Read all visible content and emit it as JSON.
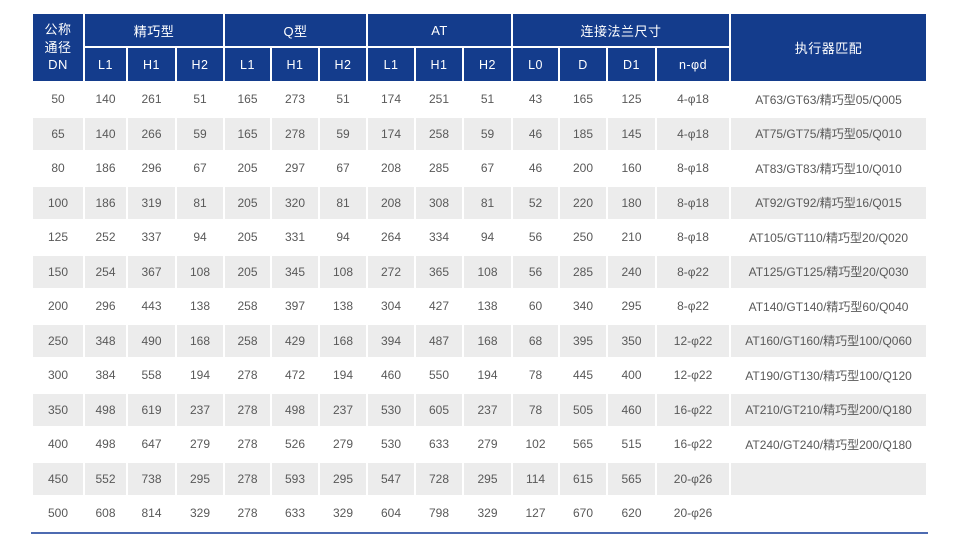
{
  "colors": {
    "header_bg": "#143c8c",
    "header_text": "#ffffff",
    "stripe": "#ececec",
    "body_text": "#595959",
    "bottom_line": "#4d6bb1"
  },
  "table": {
    "dn_header": "公称\n通径\nDN",
    "groups": [
      {
        "label": "精巧型",
        "cols": [
          "L1",
          "H1",
          "H2"
        ]
      },
      {
        "label": "Q型",
        "cols": [
          "L1",
          "H1",
          "H2"
        ]
      },
      {
        "label": "AT",
        "cols": [
          "L1",
          "H1",
          "H2"
        ]
      },
      {
        "label": "连接法兰尺寸",
        "cols": [
          "L0",
          "D",
          "D1",
          "n-φd"
        ]
      }
    ],
    "actuator_header": "执行器匹配",
    "rows": [
      [
        50,
        140,
        261,
        51,
        165,
        273,
        51,
        174,
        251,
        51,
        43,
        165,
        125,
        "4-φ18",
        "AT63/GT63/精巧型05/Q005"
      ],
      [
        65,
        140,
        266,
        59,
        165,
        278,
        59,
        174,
        258,
        59,
        46,
        185,
        145,
        "4-φ18",
        "AT75/GT75/精巧型05/Q010"
      ],
      [
        80,
        186,
        296,
        67,
        205,
        297,
        67,
        208,
        285,
        67,
        46,
        200,
        160,
        "8-φ18",
        "AT83/GT83/精巧型10/Q010"
      ],
      [
        100,
        186,
        319,
        81,
        205,
        320,
        81,
        208,
        308,
        81,
        52,
        220,
        180,
        "8-φ18",
        "AT92/GT92/精巧型16/Q015"
      ],
      [
        125,
        252,
        337,
        94,
        205,
        331,
        94,
        264,
        334,
        94,
        56,
        250,
        210,
        "8-φ18",
        "AT105/GT110/精巧型20/Q020"
      ],
      [
        150,
        254,
        367,
        108,
        205,
        345,
        108,
        272,
        365,
        108,
        56,
        285,
        240,
        "8-φ22",
        "AT125/GT125/精巧型20/Q030"
      ],
      [
        200,
        296,
        443,
        138,
        258,
        397,
        138,
        304,
        427,
        138,
        60,
        340,
        295,
        "8-φ22",
        "AT140/GT140/精巧型60/Q040"
      ],
      [
        250,
        348,
        490,
        168,
        258,
        429,
        168,
        394,
        487,
        168,
        68,
        395,
        350,
        "12-φ22",
        "AT160/GT160/精巧型100/Q060"
      ],
      [
        300,
        384,
        558,
        194,
        278,
        472,
        194,
        460,
        550,
        194,
        78,
        445,
        400,
        "12-φ22",
        "AT190/GT130/精巧型100/Q120"
      ],
      [
        350,
        498,
        619,
        237,
        278,
        498,
        237,
        530,
        605,
        237,
        78,
        505,
        460,
        "16-φ22",
        "AT210/GT210/精巧型200/Q180"
      ],
      [
        400,
        498,
        647,
        279,
        278,
        526,
        279,
        530,
        633,
        279,
        102,
        565,
        515,
        "16-φ22",
        "AT240/GT240/精巧型200/Q180"
      ],
      [
        450,
        552,
        738,
        295,
        278,
        593,
        295,
        547,
        728,
        295,
        114,
        615,
        565,
        "20-φ26",
        ""
      ],
      [
        500,
        608,
        814,
        329,
        278,
        633,
        329,
        604,
        798,
        329,
        127,
        670,
        620,
        "20-φ26",
        ""
      ]
    ]
  }
}
